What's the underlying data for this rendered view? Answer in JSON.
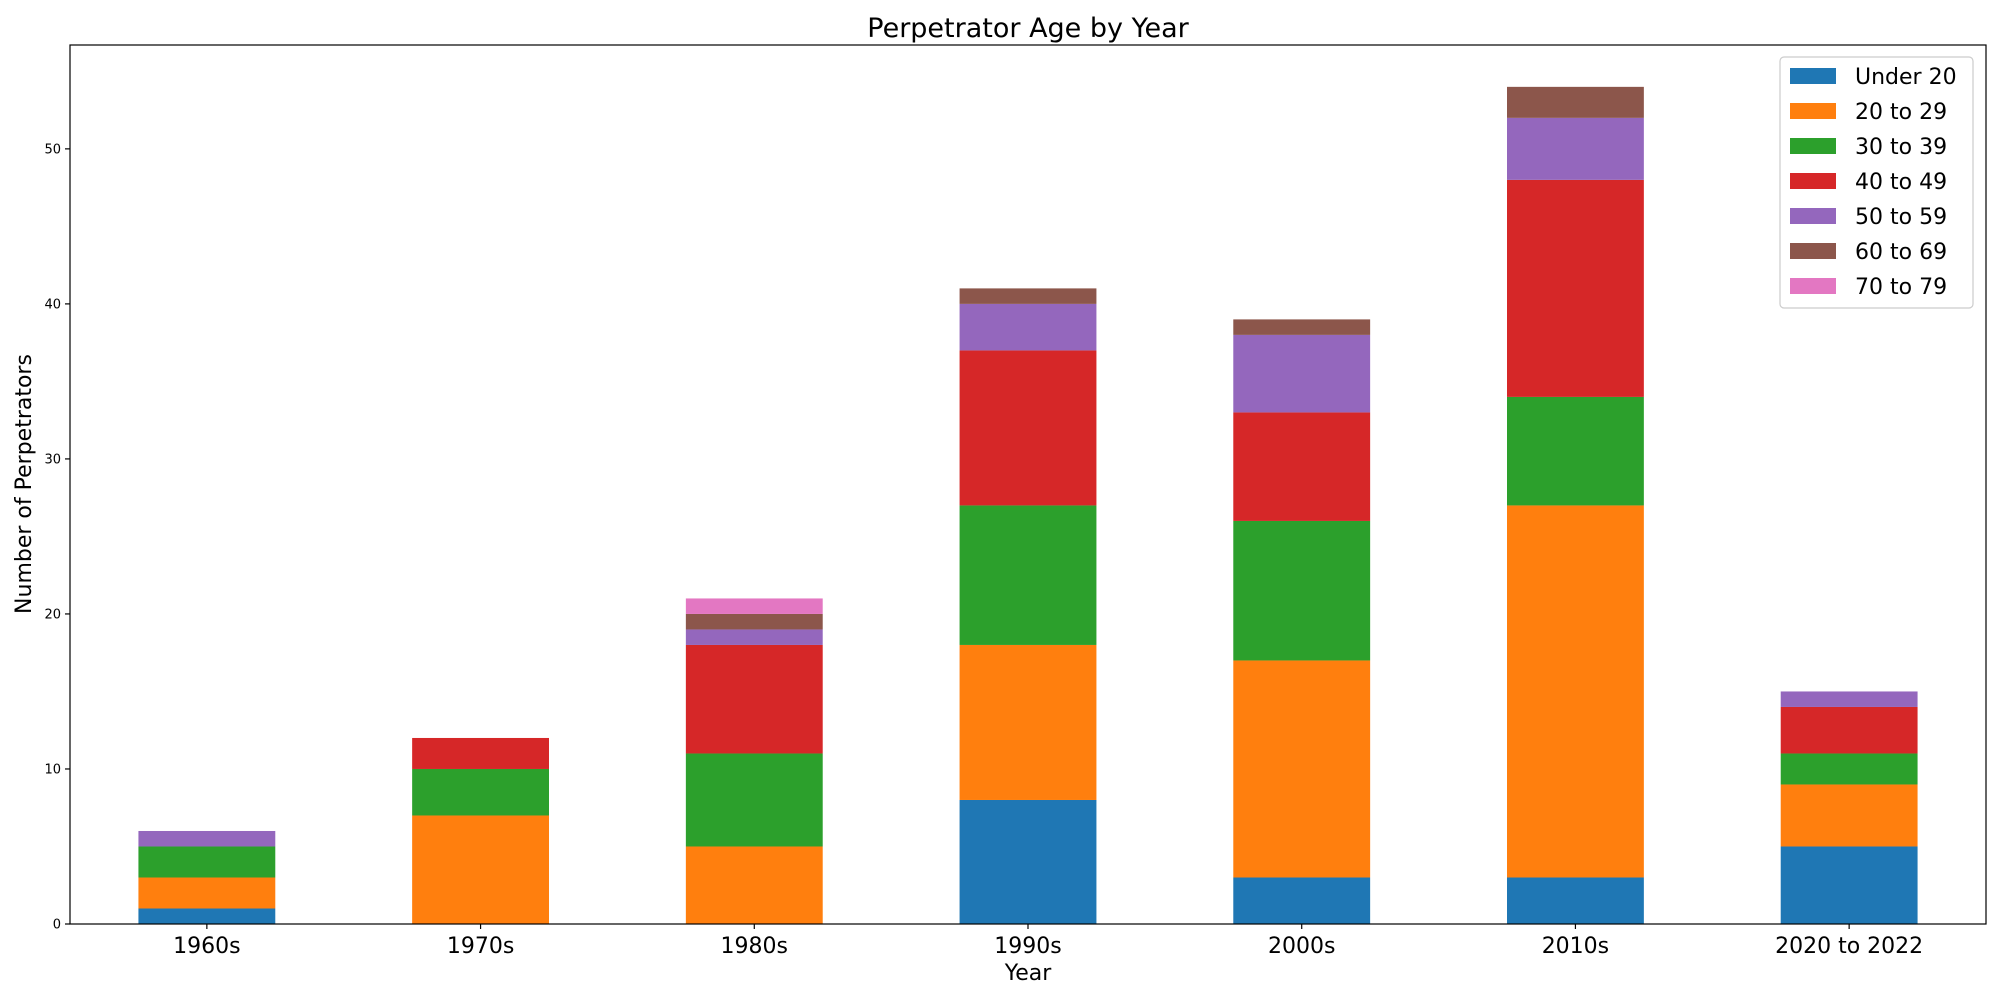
{
  "chart_data": {
    "type": "bar",
    "stacked": true,
    "title": "Perpetrator Age by Year",
    "xlabel": "Year",
    "ylabel": "Number of Perpetrators",
    "ylim": [
      0,
      56.7
    ],
    "yticks": [
      0,
      10,
      20,
      30,
      40,
      50
    ],
    "grid": false,
    "legend_position": "top-right",
    "categories": [
      "1960s",
      "1970s",
      "1980s",
      "1990s",
      "2000s",
      "2010s",
      "2020 to 2022"
    ],
    "series": [
      {
        "name": "Under 20",
        "color": "#1f77b4",
        "values": [
          1,
          0,
          0,
          8,
          3,
          3,
          5
        ]
      },
      {
        "name": "20 to 29",
        "color": "#ff7f0e",
        "values": [
          2,
          7,
          5,
          10,
          14,
          24,
          4
        ]
      },
      {
        "name": "30 to 39",
        "color": "#2ca02c",
        "values": [
          2,
          3,
          6,
          9,
          9,
          7,
          2
        ]
      },
      {
        "name": "40 to 49",
        "color": "#d62728",
        "values": [
          0,
          2,
          7,
          10,
          7,
          14,
          3
        ]
      },
      {
        "name": "50 to 59",
        "color": "#9467bd",
        "values": [
          1,
          0,
          1,
          3,
          5,
          4,
          1
        ]
      },
      {
        "name": "60 to 69",
        "color": "#8c564b",
        "values": [
          0,
          0,
          1,
          1,
          1,
          2,
          0
        ]
      },
      {
        "name": "70 to 79",
        "color": "#e377c2",
        "values": [
          0,
          0,
          1,
          0,
          0,
          0,
          0
        ]
      }
    ]
  }
}
